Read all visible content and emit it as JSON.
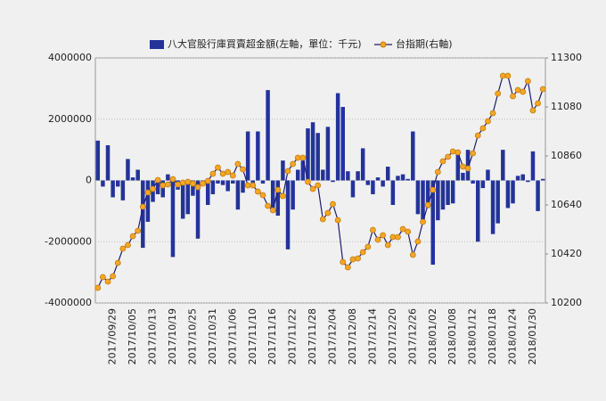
{
  "chart_data": {
    "type": "bar_line",
    "categories": [
      null,
      null,
      null,
      "2017/09/29",
      null,
      null,
      null,
      "2017/10/05",
      null,
      null,
      null,
      "2017/10/13",
      null,
      null,
      null,
      "2017/10/19",
      null,
      null,
      null,
      "2017/10/25",
      null,
      null,
      null,
      "2017/10/31",
      null,
      null,
      null,
      "2017/11/06",
      null,
      null,
      null,
      "2017/11/10",
      null,
      null,
      null,
      "2017/11/16",
      null,
      null,
      null,
      "2017/11/22",
      null,
      null,
      null,
      "2017/11/28",
      null,
      null,
      null,
      "2017/12/04",
      null,
      null,
      null,
      "2017/12/08",
      null,
      null,
      null,
      "2017/12/14",
      null,
      null,
      null,
      "2017/12/20",
      null,
      null,
      null,
      "2017/12/26",
      null,
      null,
      null,
      "2018/01/02",
      null,
      null,
      null,
      "2018/01/08",
      null,
      null,
      null,
      "2018/01/12",
      null,
      null,
      null,
      "2018/01/18",
      null,
      null,
      null,
      "2018/01/24",
      null,
      null,
      null,
      "2018/01/30",
      null,
      null
    ],
    "series": [
      {
        "name": "八大官股行庫買賣超金額(左軸，單位：千元)",
        "type": "bar",
        "color": "#24339a",
        "values": [
          1300000,
          -200000,
          1150000,
          -550000,
          -200000,
          -650000,
          700000,
          100000,
          350000,
          -2200000,
          -1350000,
          -700000,
          -450000,
          -550000,
          200000,
          -2500000,
          -300000,
          -1250000,
          -1100000,
          -500000,
          -1900000,
          -100000,
          -800000,
          -450000,
          -100000,
          -150000,
          -350000,
          -100000,
          -950000,
          -400000,
          1600000,
          -100000,
          1600000,
          -100000,
          2950000,
          -900000,
          -1150000,
          650000,
          -2250000,
          -950000,
          350000,
          650000,
          1700000,
          1900000,
          1550000,
          350000,
          1750000,
          -50000,
          2850000,
          2400000,
          300000,
          -550000,
          300000,
          1050000,
          -150000,
          -450000,
          100000,
          -200000,
          450000,
          -800000,
          150000,
          200000,
          50000,
          1600000,
          -1100000,
          -1300000,
          -900000,
          -2750000,
          -1300000,
          -950000,
          -800000,
          -750000,
          900000,
          250000,
          1000000,
          -100000,
          -2000000,
          -250000,
          350000,
          -1750000,
          -1400000,
          1000000,
          -900000,
          -750000,
          150000,
          200000,
          -50000,
          950000,
          -1000000,
          50000
        ]
      },
      {
        "name": "台指期(右軸)",
        "type": "line",
        "axis": "y2",
        "color": "#1c1c6e",
        "marker_color": "#f5a623",
        "values": [
          10268,
          10316,
          10296,
          10320,
          10380,
          10444,
          10460,
          10500,
          10524,
          10632,
          10696,
          10712,
          10752,
          10728,
          10732,
          10756,
          10732,
          10740,
          10744,
          10736,
          10720,
          10736,
          10748,
          10780,
          10808,
          10780,
          10788,
          10772,
          10824,
          10800,
          10728,
          10728,
          10700,
          10684,
          10636,
          10616,
          10708,
          10680,
          10792,
          10824,
          10852,
          10852,
          10744,
          10712,
          10728,
          10576,
          10604,
          10644,
          10572,
          10384,
          10360,
          10396,
          10400,
          10428,
          10452,
          10528,
          10484,
          10504,
          10460,
          10496,
          10496,
          10532,
          10520,
          10416,
          10476,
          10564,
          10640,
          10708,
          10788,
          10836,
          10856,
          10880,
          10876,
          10812,
          10804,
          10872,
          10952,
          10984,
          11016,
          11052,
          11140,
          11220,
          11220,
          11128,
          11156,
          11148,
          11196,
          11064,
          11096,
          11160
        ]
      }
    ],
    "ylim": [
      -4000000,
      4000000
    ],
    "yticks": [
      -4000000,
      -2000000,
      0,
      2000000,
      4000000
    ],
    "y2lim": [
      10200,
      11300
    ],
    "y2ticks": [
      10200,
      10420,
      10640,
      10860,
      11080,
      11300
    ],
    "grid": true
  }
}
